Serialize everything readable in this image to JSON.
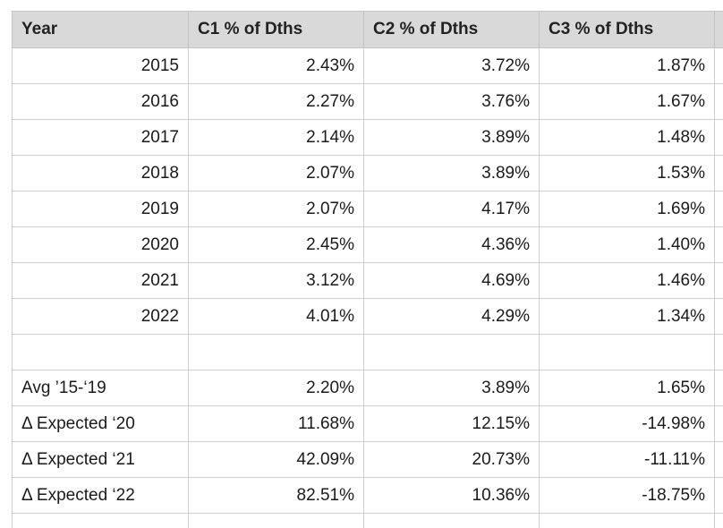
{
  "table": {
    "headers": [
      "Year",
      "C1 % of Dths",
      "C2 % of Dths",
      "C3 % of Dths",
      ""
    ],
    "year_rows": [
      {
        "label": "2015",
        "c1": "2.43%",
        "c2": "3.72%",
        "c3": "1.87%"
      },
      {
        "label": "2016",
        "c1": "2.27%",
        "c2": "3.76%",
        "c3": "1.67%"
      },
      {
        "label": "2017",
        "c1": "2.14%",
        "c2": "3.89%",
        "c3": "1.48%"
      },
      {
        "label": "2018",
        "c1": "2.07%",
        "c2": "3.89%",
        "c3": "1.53%"
      },
      {
        "label": "2019",
        "c1": "2.07%",
        "c2": "4.17%",
        "c3": "1.69%"
      },
      {
        "label": "2020",
        "c1": "2.45%",
        "c2": "4.36%",
        "c3": "1.40%"
      },
      {
        "label": "2021",
        "c1": "3.12%",
        "c2": "4.69%",
        "c3": "1.46%"
      },
      {
        "label": "2022",
        "c1": "4.01%",
        "c2": "4.29%",
        "c3": "1.34%"
      }
    ],
    "summary_rows": [
      {
        "label": "Avg ’15-‘19",
        "c1": "2.20%",
        "c2": "3.89%",
        "c3": "1.65%"
      },
      {
        "label": "Δ Expected ‘20",
        "c1": "11.68%",
        "c2": "12.15%",
        "c3": "-14.98%"
      },
      {
        "label": "Δ Expected ‘21",
        "c1": "42.09%",
        "c2": "20.73%",
        "c3": "-11.11%"
      },
      {
        "label": "Δ Expected ‘22",
        "c1": "82.51%",
        "c2": "10.36%",
        "c3": "-18.75%"
      }
    ]
  },
  "colors": {
    "header_background": "#d9d9d9",
    "grid_line": "#cfcfcf",
    "text": "#1a1a1a"
  }
}
